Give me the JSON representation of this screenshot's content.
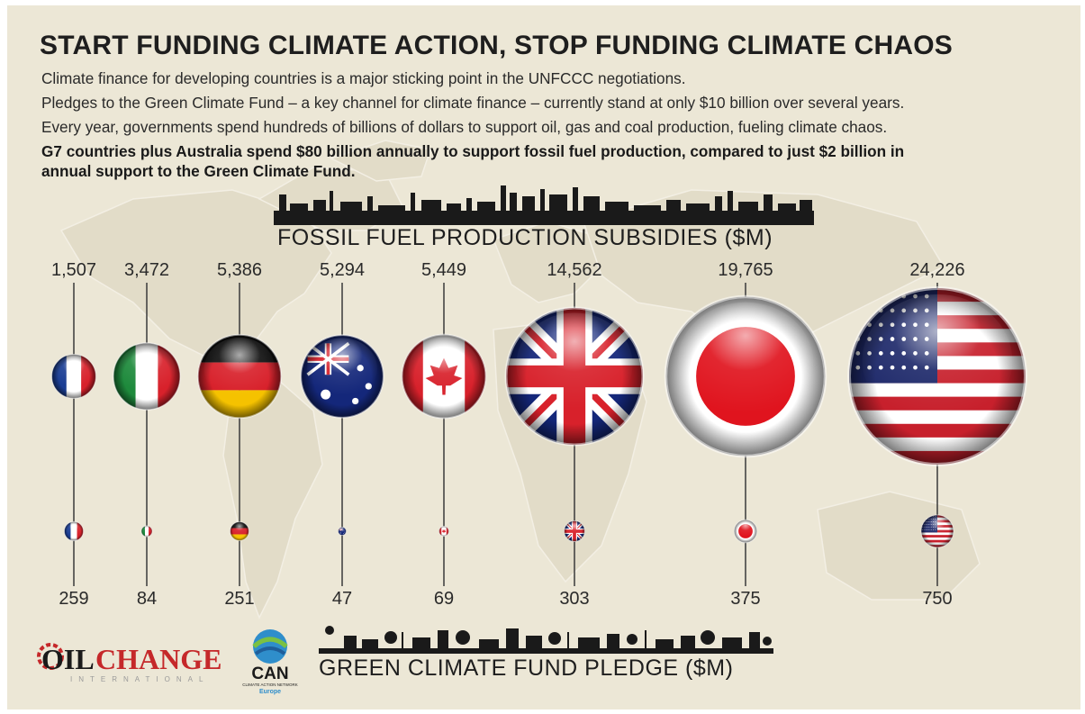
{
  "header": {
    "title": "START FUNDING CLIMATE ACTION, STOP FUNDING CLIMATE CHAOS",
    "line1": "Climate finance for developing countries is a major sticking point in the UNFCCC negotiations.",
    "line2": "Pledges to the Green Climate Fund – a key channel for climate finance – currently stand at only $10 billion over several years.",
    "line3": "Every year, governments spend hundreds of billions of dollars to support oil, gas and coal production, fueling climate chaos.",
    "line4": "G7 countries plus Australia spend $80 billion annually to support fossil fuel production, compared to just $2 billion in",
    "line5": "annual support to the Green Climate Fund."
  },
  "colors": {
    "background": "#ece7d6",
    "map": "#e0dac6",
    "text": "#1e1e1e",
    "stem": "#3a3a3a",
    "silhouette": "#1a1a1a"
  },
  "logos": {
    "oilchange_oil": "OIL",
    "oilchange_change": "CHANGE",
    "oilchange_sub": "INTERNATIONAL",
    "can_main": "CAN",
    "can_sub": "CLIMATE ACTION NETWORK",
    "can_region": "Europe"
  },
  "chart_data": {
    "type": "bubble",
    "top_axis_title": "FOSSIL FUEL PRODUCTION SUBSIDIES ($M)",
    "bottom_axis_title": "GREEN CLIMATE FUND PLEDGE ($M)",
    "categories": [
      "France",
      "Italy",
      "Germany",
      "Australia",
      "Canada",
      "UK",
      "Japan",
      "USA"
    ],
    "flag_icons": [
      "france-flag",
      "italy-flag",
      "germany-flag",
      "australia-flag",
      "canada-flag",
      "uk-flag",
      "japan-flag",
      "usa-flag"
    ],
    "series": [
      {
        "name": "FOSSIL FUEL PRODUCTION SUBSIDIES ($M)",
        "values": [
          1507,
          3472,
          5386,
          5294,
          5449,
          14562,
          19765,
          24226
        ]
      },
      {
        "name": "GREEN CLIMATE FUND PLEDGE ($M)",
        "values": [
          259,
          84,
          251,
          47,
          69,
          303,
          375,
          750
        ]
      }
    ],
    "top_labels": [
      "1,507",
      "3,472",
      "5,386",
      "5,294",
      "5,449",
      "14,562",
      "19,765",
      "24,226"
    ],
    "bottom_labels": [
      "259",
      "84",
      "251",
      "47",
      "69",
      "303",
      "375",
      "750"
    ]
  }
}
